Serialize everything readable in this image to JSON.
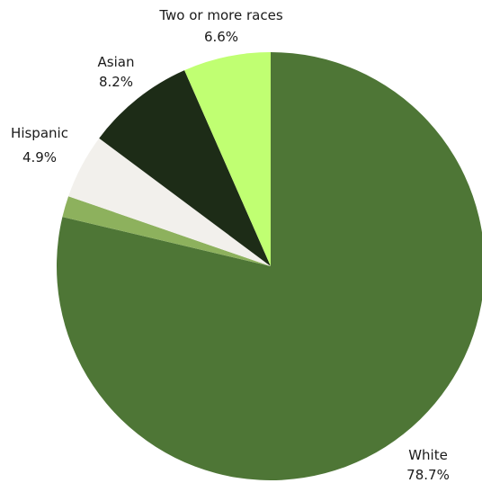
{
  "chart_data": {
    "type": "pie",
    "title": "",
    "start": "top",
    "direction": "clockwise",
    "slices": [
      {
        "label": "White",
        "value": 78.7,
        "display": "78.7%",
        "color": "#4e7636",
        "labeled": true
      },
      {
        "label": "",
        "value": 1.6,
        "display": "",
        "color": "#8db15d",
        "labeled": false
      },
      {
        "label": "Hispanic",
        "value": 4.9,
        "display": "4.9%",
        "color": "#f2f0ec",
        "labeled": true
      },
      {
        "label": "Asian",
        "value": 8.2,
        "display": "8.2%",
        "color": "#1d2c17",
        "labeled": true
      },
      {
        "label": "Two or more races",
        "value": 6.6,
        "display": "6.6%",
        "color": "#c0ff72",
        "labeled": true
      }
    ]
  }
}
